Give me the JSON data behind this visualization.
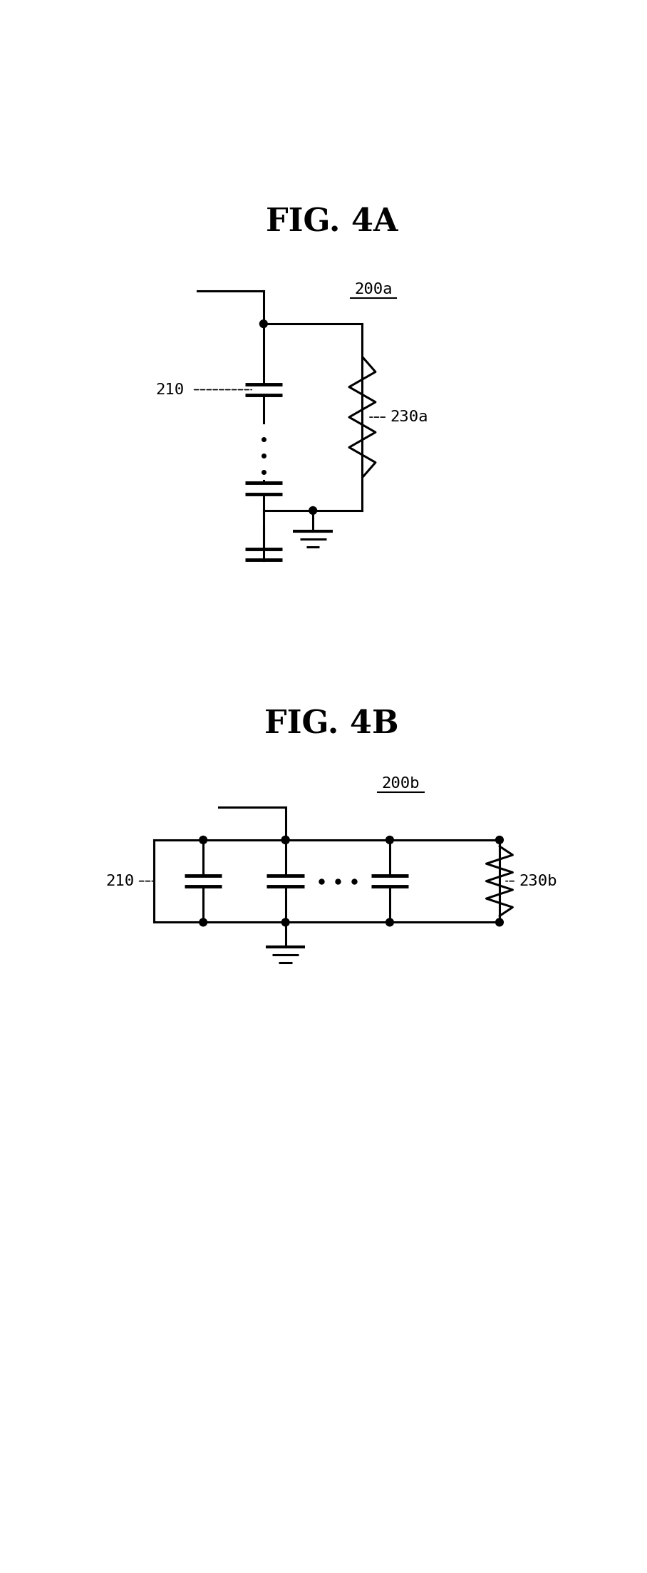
{
  "fig4a_title": "FIG. 4A",
  "fig4b_title": "FIG. 4B",
  "label_200a": "200a",
  "label_200b": "200b",
  "label_210": "210",
  "label_230a": "230a",
  "label_230b": "230b",
  "bg_color": "#ffffff",
  "line_color": "#000000",
  "lw": 2.2
}
